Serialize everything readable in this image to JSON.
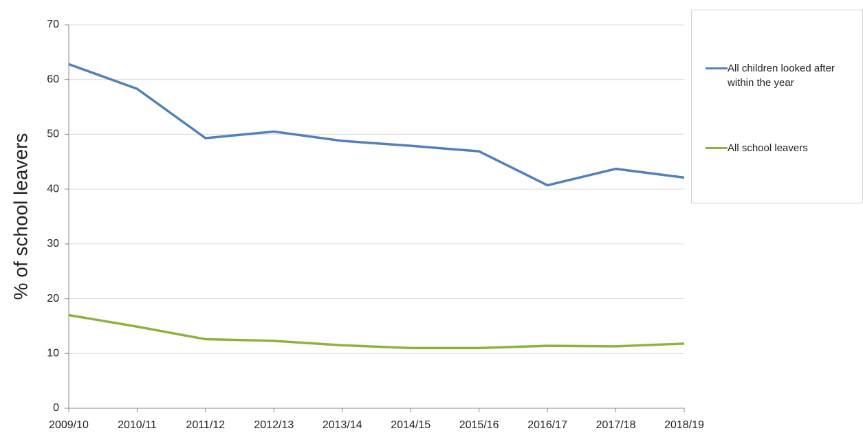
{
  "chart_data": {
    "type": "line",
    "y_label": "% of school leavers",
    "categories": [
      "2009/10",
      "2010/11",
      "2011/12",
      "2012/13",
      "2013/14",
      "2014/15",
      "2015/16",
      "2016/17",
      "2017/18",
      "2018/19"
    ],
    "series": [
      {
        "name": "All children looked after within the year",
        "color": "#4f81bd",
        "values": [
          62.8,
          58.3,
          49.3,
          50.5,
          48.8,
          47.9,
          46.9,
          40.7,
          43.7,
          42.1
        ]
      },
      {
        "name": "All school leavers",
        "color": "#8cb43c",
        "values": [
          17.0,
          14.9,
          12.6,
          12.3,
          11.5,
          11.0,
          11.0,
          11.4,
          11.3,
          11.8
        ]
      }
    ],
    "ylim": [
      0,
      70
    ],
    "yticks": [
      0,
      10,
      20,
      30,
      40,
      50,
      60,
      70
    ],
    "grid": true,
    "legend": "right"
  }
}
